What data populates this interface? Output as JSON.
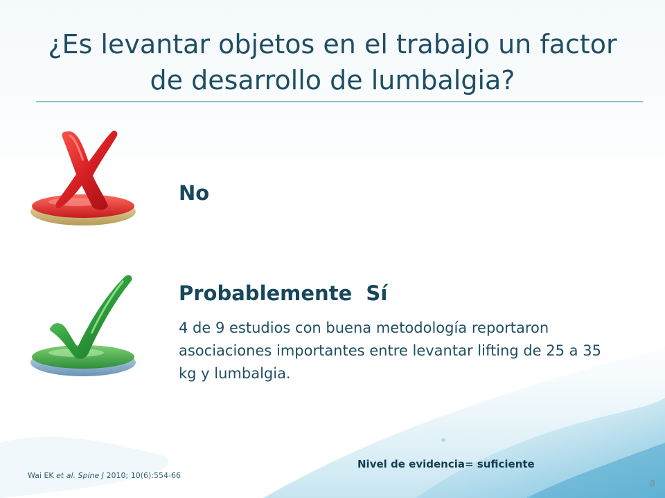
{
  "slide": {
    "title": "¿Es levantar objetos en el trabajo un factor de desarrollo de lumbalgia?",
    "answers": [
      {
        "label": "No",
        "icon": "red-x-icon"
      },
      {
        "label": "Probablemente  Sí",
        "icon": "green-check-icon",
        "detail": "4 de 9 estudios con buena metodología reportaron asociaciones importantes entre levantar lifting de 25 a 35 kg y lumbalgia."
      }
    ],
    "evidence_level": "Nivel de evidencia= suficiente",
    "citation": {
      "authors": "Wai EK",
      "et_al": "et al.",
      "journal": "Spine J",
      "details": "2010; 10(6):554-66"
    },
    "page_number": "8"
  },
  "colors": {
    "title": "#1f4e63",
    "accent_rule": "#8ec2d6",
    "x_red": "#d61f24",
    "check_green": "#2e9f3a"
  }
}
